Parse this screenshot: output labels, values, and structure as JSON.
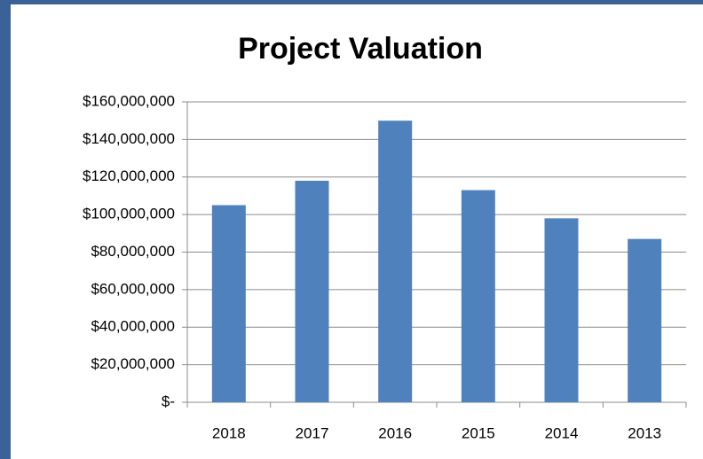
{
  "chart_data": {
    "type": "bar",
    "title": "Project Valuation",
    "categories": [
      "2018",
      "2017",
      "2016",
      "2015",
      "2014",
      "2013"
    ],
    "values": [
      105000000,
      118000000,
      150000000,
      113000000,
      98000000,
      87000000
    ],
    "color": "#4f81bd",
    "ylim": [
      0,
      160000000
    ],
    "yticks": [
      {
        "value": 0,
        "label": "$-"
      },
      {
        "value": 20000000,
        "label": "$20,000,000"
      },
      {
        "value": 40000000,
        "label": "$40,000,000"
      },
      {
        "value": 60000000,
        "label": "$60,000,000"
      },
      {
        "value": 80000000,
        "label": "$80,000,000"
      },
      {
        "value": 100000000,
        "label": "$100,000,000"
      },
      {
        "value": 120000000,
        "label": "$120,000,000"
      },
      {
        "value": 140000000,
        "label": "$140,000,000"
      },
      {
        "value": 160000000,
        "label": "$160,000,000"
      }
    ],
    "grid": true
  }
}
